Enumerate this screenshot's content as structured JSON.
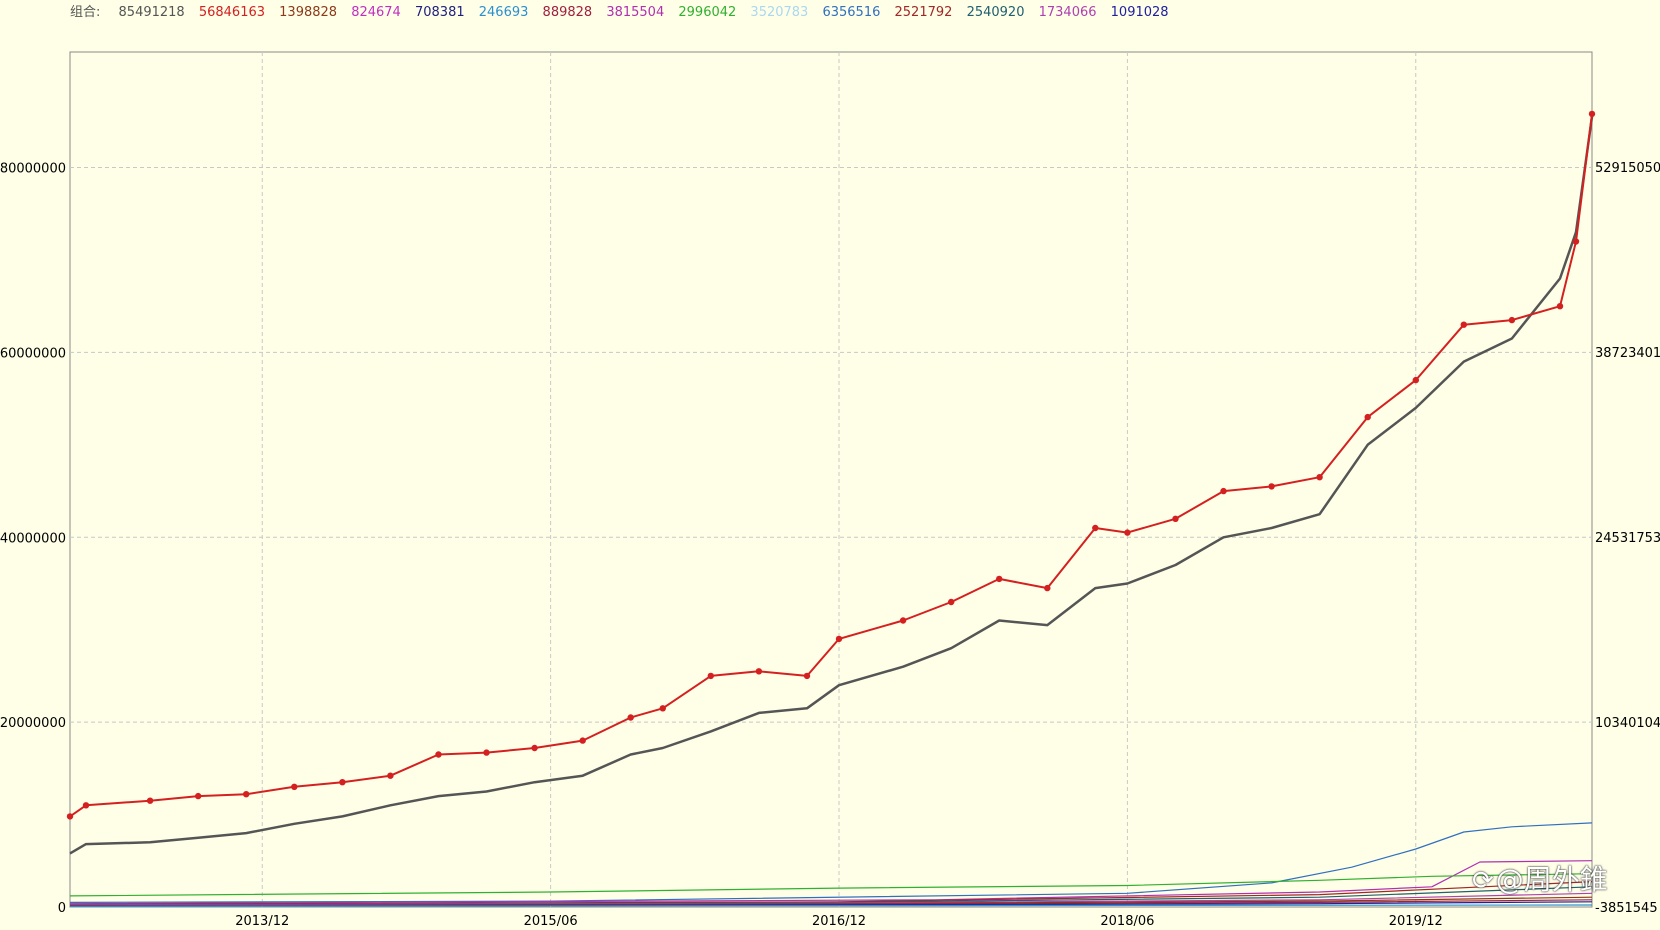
{
  "legend": {
    "title": "组合:",
    "items": [
      {
        "value": "85491218",
        "color": "#555555"
      },
      {
        "value": "56846163",
        "color": "#d42020"
      },
      {
        "value": "1398828",
        "color": "#8b3a1a"
      },
      {
        "value": "824674",
        "color": "#c030c0"
      },
      {
        "value": "708381",
        "color": "#202080"
      },
      {
        "value": "246693",
        "color": "#2a90d0"
      },
      {
        "value": "889828",
        "color": "#a02040"
      },
      {
        "value": "3815504",
        "color": "#b030b0"
      },
      {
        "value": "2996042",
        "color": "#30b030"
      },
      {
        "value": "3520783",
        "color": "#aad8f0"
      },
      {
        "value": "6356516",
        "color": "#3070c0"
      },
      {
        "value": "2521792",
        "color": "#a02828"
      },
      {
        "value": "2540920",
        "color": "#206070"
      },
      {
        "value": "1734066",
        "color": "#b040b0"
      },
      {
        "value": "1091028",
        "color": "#2020a0"
      }
    ]
  },
  "watermark": {
    "text": "@周外錐"
  },
  "chart_data": {
    "type": "line",
    "grid": true,
    "x_ticks": [
      "2013/12",
      "2015/06",
      "2016/12",
      "2018/06",
      "2019/12"
    ],
    "xlim": [
      "2012/12",
      "2020/11"
    ],
    "y_left_ticks": [
      "0",
      "20000000",
      "40000000",
      "60000000",
      "80000000"
    ],
    "y_left_lim": [
      0,
      92500000
    ],
    "y_right_ticks": [
      "-3851545",
      "10340104",
      "24531753",
      "38723401",
      "52915050"
    ],
    "y_right_lim": [
      -3851545,
      61739550
    ],
    "series": [
      {
        "color": "#555555",
        "axis": "left",
        "width": 2.5,
        "x": [
          "2012/12",
          "2013/01",
          "2013/05",
          "2013/08",
          "2013/11",
          "2014/02",
          "2014/05",
          "2014/08",
          "2014/11",
          "2015/02",
          "2015/05",
          "2015/08",
          "2015/11",
          "2016/01",
          "2016/04",
          "2016/07",
          "2016/10",
          "2016/12",
          "2017/04",
          "2017/07",
          "2017/10",
          "2018/01",
          "2018/04",
          "2018/06",
          "2018/09",
          "2018/12",
          "2019/03",
          "2019/06",
          "2019/09",
          "2019/12",
          "2020/03",
          "2020/06",
          "2020/09",
          "2020/10",
          "2020/11"
        ],
        "y": [
          5800000,
          6800000,
          7000000,
          7500000,
          8000000,
          9000000,
          9800000,
          11000000,
          12000000,
          12500000,
          13500000,
          14200000,
          16500000,
          17200000,
          19000000,
          21000000,
          21500000,
          24000000,
          26000000,
          28000000,
          31000000,
          30500000,
          34500000,
          35000000,
          37000000,
          40000000,
          41000000,
          42500000,
          50000000,
          54000000,
          59000000,
          61500000,
          68000000,
          73000000,
          85500000
        ]
      },
      {
        "color": "#d42020",
        "axis": "left",
        "width": 2,
        "markers": true,
        "x": [
          "2012/12",
          "2013/01",
          "2013/05",
          "2013/08",
          "2013/11",
          "2014/02",
          "2014/05",
          "2014/08",
          "2014/11",
          "2015/02",
          "2015/05",
          "2015/08",
          "2015/11",
          "2016/01",
          "2016/04",
          "2016/07",
          "2016/10",
          "2016/12",
          "2017/04",
          "2017/07",
          "2017/10",
          "2018/01",
          "2018/04",
          "2018/06",
          "2018/09",
          "2018/12",
          "2019/03",
          "2019/06",
          "2019/09",
          "2019/12",
          "2020/03",
          "2020/06",
          "2020/09",
          "2020/10",
          "2020/11"
        ],
        "y": [
          9800000,
          11000000,
          11500000,
          12000000,
          12200000,
          13000000,
          13500000,
          14200000,
          16500000,
          16700000,
          17200000,
          18000000,
          20500000,
          21500000,
          25000000,
          25500000,
          25000000,
          29000000,
          31000000,
          33000000,
          35500000,
          34500000,
          41000000,
          40500000,
          42000000,
          45000000,
          45500000,
          46500000,
          53000000,
          57000000,
          63000000,
          63500000,
          65000000,
          72000000,
          85800000
        ]
      },
      {
        "color": "#3070c0",
        "axis": "right",
        "width": 1.2,
        "x": [
          "2012/12",
          "2015/06",
          "2018/06",
          "2019/03",
          "2019/08",
          "2019/12",
          "2020/03",
          "2020/06",
          "2020/11"
        ],
        "y": [
          -3500000,
          -3400000,
          -2800000,
          -2000000,
          -800000,
          600000,
          1900000,
          2300000,
          2600000
        ]
      },
      {
        "color": "#b030b0",
        "axis": "right",
        "width": 1.2,
        "x": [
          "2012/12",
          "2017/06",
          "2019/06",
          "2020/01",
          "2020/04",
          "2020/11"
        ],
        "y": [
          -3600000,
          -3300000,
          -2700000,
          -2300000,
          -400000,
          -300000
        ]
      },
      {
        "color": "#30b030",
        "axis": "right",
        "width": 1.2,
        "x": [
          "2012/12",
          "2015/06",
          "2016/12",
          "2018/06",
          "2019/06",
          "2020/01",
          "2020/11"
        ],
        "y": [
          -3000000,
          -2700000,
          -2400000,
          -2200000,
          -1800000,
          -1500000,
          -1300000
        ]
      },
      {
        "color": "#a02828",
        "axis": "right",
        "width": 1.2,
        "x": [
          "2012/12",
          "2016/12",
          "2019/06",
          "2020/11"
        ],
        "y": [
          -3650000,
          -3450000,
          -2900000,
          -1900000
        ]
      },
      {
        "color": "#206070",
        "axis": "right",
        "width": 1.2,
        "x": [
          "2012/12",
          "2016/12",
          "2019/06",
          "2020/11"
        ],
        "y": [
          -3700000,
          -3500000,
          -3100000,
          -2300000
        ]
      },
      {
        "color": "#b040b0",
        "axis": "right",
        "width": 1.2,
        "x": [
          "2012/12",
          "2016/12",
          "2019/06",
          "2020/11"
        ],
        "y": [
          -3700000,
          -3550000,
          -3300000,
          -2800000
        ]
      },
      {
        "color": "#8b3a1a",
        "axis": "right",
        "width": 1.2,
        "x": [
          "2012/12",
          "2016/12",
          "2019/06",
          "2020/11"
        ],
        "y": [
          -3750000,
          -3600000,
          -3400000,
          -3100000
        ]
      },
      {
        "color": "#a02040",
        "axis": "right",
        "width": 1.2,
        "x": [
          "2012/12",
          "2016/12",
          "2019/06",
          "2020/11"
        ],
        "y": [
          -3750000,
          -3650000,
          -3500000,
          -3300000
        ]
      },
      {
        "color": "#2020a0",
        "axis": "right",
        "width": 1.2,
        "x": [
          "2012/12",
          "2016/12",
          "2019/06",
          "2020/11"
        ],
        "y": [
          -3780000,
          -3700000,
          -3600000,
          -3450000
        ]
      },
      {
        "color": "#2a90d0",
        "axis": "right",
        "width": 1.2,
        "x": [
          "2012/12",
          "2020/11"
        ],
        "y": [
          -3800000,
          -3700000
        ]
      }
    ]
  }
}
